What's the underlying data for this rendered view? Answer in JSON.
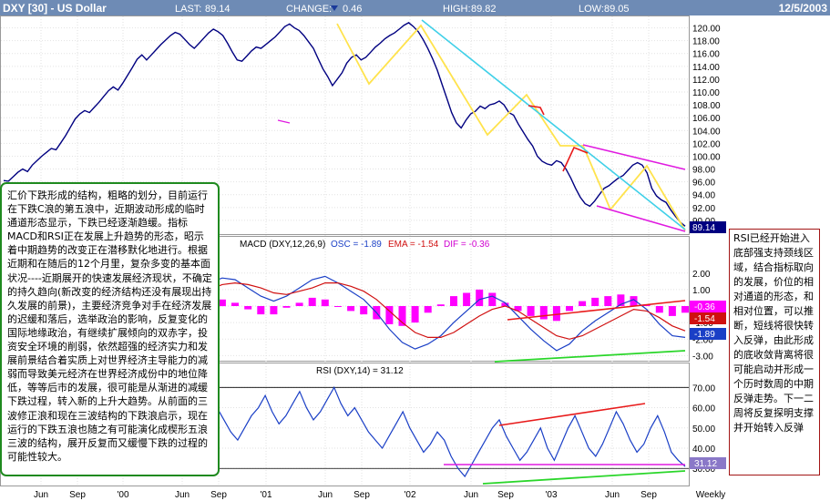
{
  "header": {
    "symbol": "DXY [30] - US Dollar",
    "last_label": "LAST:",
    "last_value": "89.14",
    "change_label": "CHANGE:",
    "change_value": "0.46",
    "high_label": "HIGH:",
    "high_value": "89.82",
    "low_label": "LOW:",
    "low_value": "89.05",
    "date": "12/5/2003"
  },
  "colors": {
    "header_bg": "#6e8bb5",
    "price_line": "#000080",
    "macd_line": "#1a3fc6",
    "ema_line": "#d01010",
    "histogram": "#ff00ff",
    "rsi_line": "#1a3fc6",
    "trend_cyan": "#3fd0e8",
    "trend_yellow": "#ffe34d",
    "trend_red": "#e81a1a",
    "trend_magenta": "#e01ae0",
    "trend_green": "#2ad62a",
    "annot_left_border": "#1f8a1f",
    "annot_right_border": "#a31515"
  },
  "chart_data": [
    {
      "type": "line",
      "panel": "price",
      "series": [
        {
          "values": [
            96.2,
            96.1,
            96.8,
            97.5,
            98.0,
            97.6,
            98.6,
            99.3,
            100.0,
            100.6,
            101.2,
            101.0,
            102.1,
            103.2,
            104.5,
            105.8,
            106.6,
            107.1,
            106.8,
            107.6,
            108.4,
            109.3,
            110.2,
            110.8,
            110.3,
            111.4,
            112.6,
            113.8,
            115.1,
            115.8,
            115.0,
            115.8,
            116.6,
            117.4,
            118.1,
            118.8,
            119.3,
            119.0,
            118.2,
            117.4,
            116.8,
            117.6,
            118.4,
            119.2,
            119.8,
            119.4,
            118.8,
            117.6,
            116.2,
            115.0,
            114.8,
            115.6,
            116.4,
            117.0,
            116.8,
            117.4,
            118.0,
            118.6,
            119.4,
            120.2,
            120.6,
            120.0,
            119.6,
            118.8,
            117.8,
            116.8,
            115.2,
            113.6,
            112.4,
            111.0,
            112.0,
            113.0,
            114.5,
            115.4,
            115.8,
            115.0,
            115.4,
            116.2,
            117.0,
            117.6,
            118.3,
            118.8,
            119.2,
            119.8,
            120.4,
            120.8,
            120.2,
            119.4,
            118.2,
            116.8,
            115.2,
            113.4,
            111.2,
            109.0,
            106.8,
            105.2,
            104.4,
            105.6,
            106.6,
            107.0,
            107.8,
            107.4,
            108.0,
            108.2,
            108.6,
            108.0,
            106.8,
            106.4,
            105.0,
            103.8,
            102.6,
            101.6,
            100.0,
            99.2,
            98.8,
            98.6,
            99.3,
            99.0,
            98.0,
            96.6,
            95.0,
            93.6,
            92.6,
            92.2,
            93.0,
            94.0,
            95.0,
            95.4,
            96.0,
            96.6,
            97.0,
            97.8,
            98.6,
            99.0,
            98.6,
            97.4,
            95.0,
            93.8,
            93.2,
            92.8,
            91.6,
            90.6,
            89.7,
            89.1
          ]
        }
      ],
      "axis": "right",
      "y_ticks": [
        "120.00",
        "118.00",
        "116.00",
        "114.00",
        "112.00",
        "110.00",
        "108.00",
        "106.00",
        "104.00",
        "102.00",
        "100.00",
        "98.00",
        "96.00",
        "94.00",
        "92.00",
        "90.00"
      ],
      "ylim": [
        88,
        121.5
      ],
      "last_value_label": "89.14"
    },
    {
      "type": "line",
      "panel": "macd",
      "title": "MACD (DXY,12,26,9)",
      "osc_label": "OSC = -1.89",
      "ema_label": "EMA = -1.54",
      "dif_label": "DIF = -0.36",
      "series": [
        {
          "name": "OSC",
          "values": [
            0.8,
            1.2,
            1.8,
            2.2,
            2.4,
            2.6,
            2.7,
            2.6,
            2.4,
            2.2,
            1.7,
            1.1,
            0.5,
            0.3,
            0.6,
            1.0,
            1.4,
            1.7,
            1.6,
            1.1,
            0.6,
            0.3,
            0.6,
            1.1,
            1.6,
            1.8,
            1.4,
            0.9,
            0.4,
            -0.4,
            -1.4,
            -2.2,
            -2.6,
            -2.3,
            -1.8,
            -1.0,
            -0.3,
            0.4,
            0.6,
            0.2,
            -0.6,
            -1.4,
            -2.1,
            -2.7,
            -2.3,
            -1.5,
            -0.9,
            -0.4,
            0.1,
            0.4,
            -0.2,
            -1.1,
            -1.8,
            -1.9
          ]
        },
        {
          "name": "EMA",
          "values": [
            0.4,
            0.8,
            1.2,
            1.6,
            1.9,
            2.2,
            2.4,
            2.5,
            2.4,
            2.3,
            2.0,
            1.6,
            1.2,
            0.8,
            0.7,
            0.8,
            1.0,
            1.3,
            1.4,
            1.3,
            1.1,
            0.8,
            0.7,
            0.9,
            1.1,
            1.4,
            1.4,
            1.2,
            0.9,
            0.4,
            -0.3,
            -1.0,
            -1.6,
            -1.9,
            -1.9,
            -1.6,
            -1.1,
            -0.6,
            -0.2,
            0.0,
            -0.3,
            -0.8,
            -1.3,
            -1.8,
            -2.0,
            -1.8,
            -1.4,
            -1.0,
            -0.6,
            -0.2,
            -0.3,
            -0.7,
            -1.2,
            -1.5
          ]
        },
        {
          "name": "DIF",
          "values": [
            0.4,
            0.4,
            0.6,
            0.6,
            0.5,
            0.4,
            0.3,
            0.1,
            0.0,
            -0.1,
            -0.3,
            -0.5,
            -0.7,
            -0.5,
            -0.1,
            0.2,
            0.4,
            0.4,
            0.2,
            -0.2,
            -0.5,
            -0.5,
            -0.1,
            0.2,
            0.5,
            0.4,
            0.0,
            -0.3,
            -0.5,
            -0.8,
            -1.1,
            -1.2,
            -1.0,
            -0.4,
            0.1,
            0.6,
            0.8,
            1.0,
            0.8,
            0.2,
            -0.3,
            -0.6,
            -0.8,
            -0.9,
            -0.3,
            0.3,
            0.5,
            0.6,
            0.7,
            0.6,
            0.1,
            -0.4,
            -0.6,
            -0.4
          ]
        }
      ],
      "y_ticks": [
        "2.00",
        "1.00",
        "0.00",
        "-1.00",
        "-2.00",
        "-3.00"
      ],
      "ylim": [
        -3.2,
        3.2
      ],
      "value_labels": [
        "-0.36",
        "-1.54",
        "-1.89"
      ]
    },
    {
      "type": "line",
      "panel": "rsi",
      "title": "RSI (DXY,14) = 31.12",
      "series": [
        {
          "values": [
            66,
            72,
            60,
            68,
            62,
            70,
            74,
            65,
            55,
            60,
            67,
            62,
            58,
            66,
            70,
            62,
            56,
            64,
            68,
            58,
            52,
            60,
            66,
            70,
            64,
            58,
            62,
            66,
            72,
            64,
            56,
            60,
            54,
            48,
            44,
            50,
            56,
            60,
            66,
            58,
            52,
            56,
            62,
            68,
            60,
            54,
            58,
            64,
            70,
            62,
            56,
            60,
            54,
            48,
            44,
            40,
            46,
            52,
            58,
            50,
            44,
            38,
            42,
            48,
            44,
            36,
            30,
            26,
            32,
            38,
            44,
            50,
            54,
            46,
            40,
            34,
            38,
            44,
            50,
            40,
            34,
            42,
            50,
            56,
            48,
            40,
            36,
            42,
            50,
            58,
            52,
            44,
            38,
            42,
            50,
            56,
            48,
            38,
            34,
            31
          ]
        }
      ],
      "y_ticks": [
        "70.00",
        "60.00",
        "50.00",
        "40.00",
        "30.00"
      ],
      "ylim": [
        22,
        76
      ],
      "value_label": "31.12"
    }
  ],
  "x_axis": {
    "labels": [
      "Jun",
      "Sep",
      "'00",
      "Jun",
      "Sep",
      "'01",
      "Jun",
      "Sep",
      "'02",
      "Jun",
      "Sep",
      "'03",
      "Jun",
      "Sep",
      "Weekly"
    ]
  },
  "annotations": {
    "left": "汇价下跌形成的结构，粗略的划分，目前运行在下跌C浪的第五浪中，近期波动形成的临时通道形态显示，下跌已经逐渐趋缓。指标MACD和RSI正在发展上升趋势的形态，昭示着中期趋势的改变正在潜移默化地进行。根据近期和在随后的12个月里，复杂多变的基本面状况----近期展开的快速发展经济现状，不确定的持久趋向(新改变的经济结构还没有展现出持久发展的前景)，主要经济竞争对手在经济发展的迟缓和落后，选举政治的影响，反复变化的国际地缘政治，有继续扩展倾向的双赤字，投资安全环境的削弱，依然超强的经济实力和发展前景结合着实质上对世界经济主导能力的减弱而导致美元经济在世界经济成份中的地位降低，等等后市的发展，很可能是从渐进的减缓下跌过程，转入新的上升大趋势。从前面的三波修正浪和现在三波结构的下跌浪启示，现在运行的下跌五浪也随之有可能演化成楔形五浪三波的结构，展开反复而又缓慢下跌的过程的可能性较大。",
    "right": "RSI已经开始进入底部强支持颈线区域，结合指标取向的发展，价位的相对通道的形态，和相对位置，可以推断，短线将很快转入反弹，由此形成的底收敛背离将很可能启动并形成一个历时数周的中期反弹走势。下一二周将反复探明支撑并开始转入反弹"
  }
}
